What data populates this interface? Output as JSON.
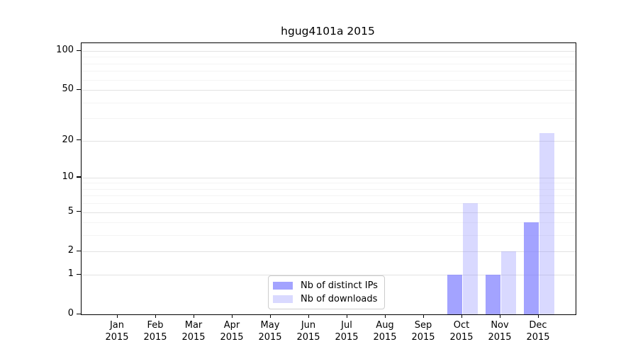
{
  "chart_data": {
    "type": "bar",
    "title": "hgug4101a 2015",
    "categories": [
      "Jan",
      "Feb",
      "Mar",
      "Apr",
      "May",
      "Jun",
      "Jul",
      "Aug",
      "Sep",
      "Oct",
      "Nov",
      "Dec"
    ],
    "year_label": "2015",
    "series": [
      {
        "name": "Nb of distinct IPs",
        "color": "rgba(128,128,255,0.72)",
        "values": [
          0,
          0,
          0,
          0,
          0,
          0,
          0,
          0,
          0,
          1,
          1,
          4
        ]
      },
      {
        "name": "Nb of downloads",
        "color": "rgba(128,128,255,0.30)",
        "values": [
          0,
          0,
          0,
          0,
          0,
          0,
          0,
          0,
          0,
          6,
          2,
          23
        ]
      }
    ],
    "yscale": "log1p",
    "ylim": [
      0,
      100
    ],
    "y_ticks": [
      0,
      1,
      2,
      5,
      10,
      20,
      50,
      100
    ],
    "grid_major_values": [
      1,
      2,
      5,
      10,
      20,
      50,
      100
    ],
    "grid_minor_values": [
      3,
      4,
      6,
      7,
      8,
      9,
      30,
      40,
      60,
      70,
      80,
      90
    ],
    "grid_on": true,
    "legend_position": "bottom-center",
    "colors": {
      "axis": "#000000",
      "grid_major": "#e2e2e2",
      "grid_minor": "#f4f4f4",
      "background": "#ffffff"
    }
  }
}
